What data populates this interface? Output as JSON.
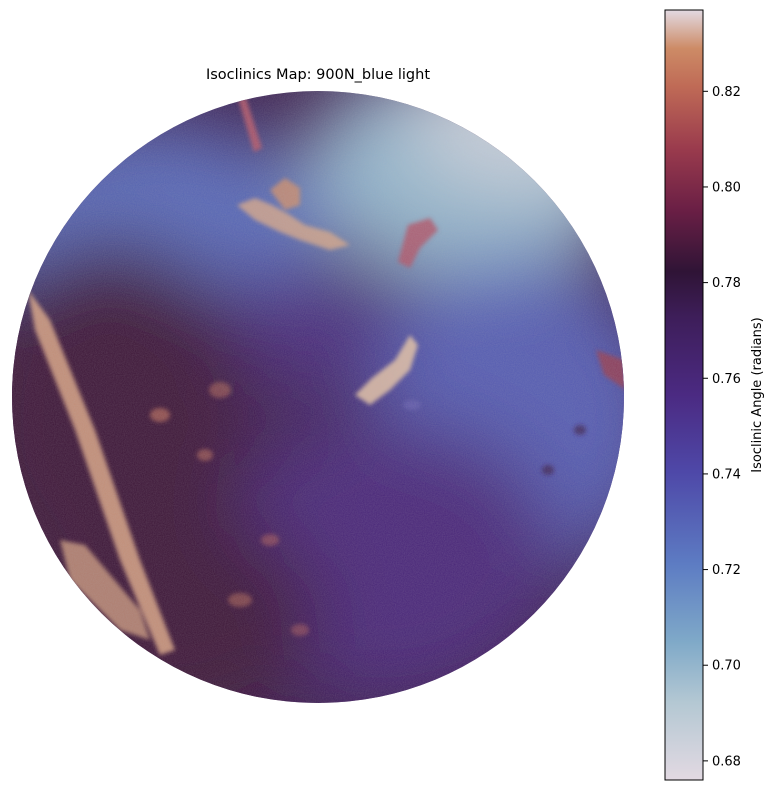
{
  "chart_data": {
    "type": "heatmap",
    "title": "Isoclinics Map: 900N_blue light",
    "colormap": "twilight",
    "colorbar": {
      "label": "Isoclinic Angle (radians)",
      "range": [
        0.676,
        0.837
      ],
      "ticks": [
        0.68,
        0.7,
        0.72,
        0.74,
        0.76,
        0.78,
        0.8,
        0.82
      ],
      "tick_labels": [
        "0.68",
        "0.70",
        "0.72",
        "0.74",
        "0.76",
        "0.78",
        "0.80",
        "0.82"
      ],
      "position": "right"
    },
    "field_shape": "circle",
    "axes_visible": false,
    "regions": [
      {
        "name": "upper-right",
        "value": 0.7
      },
      {
        "name": "top-far-right",
        "value": 0.685
      },
      {
        "name": "upper-left",
        "value": 0.728
      },
      {
        "name": "center",
        "value": 0.758
      },
      {
        "name": "right",
        "value": 0.733
      },
      {
        "name": "lower-center",
        "value": 0.76
      },
      {
        "name": "left",
        "value": 0.785
      },
      {
        "name": "bottom-left",
        "value": 0.785
      }
    ],
    "colors": {
      "light-end": "#e2d9e2",
      "blue": "#5d7cc3",
      "purple": "#4b2a82",
      "dark-mid": "#2f1436",
      "red": "#9a3b4d",
      "orange": "#cd8b66",
      "highlight": "#e6c3a6"
    }
  }
}
